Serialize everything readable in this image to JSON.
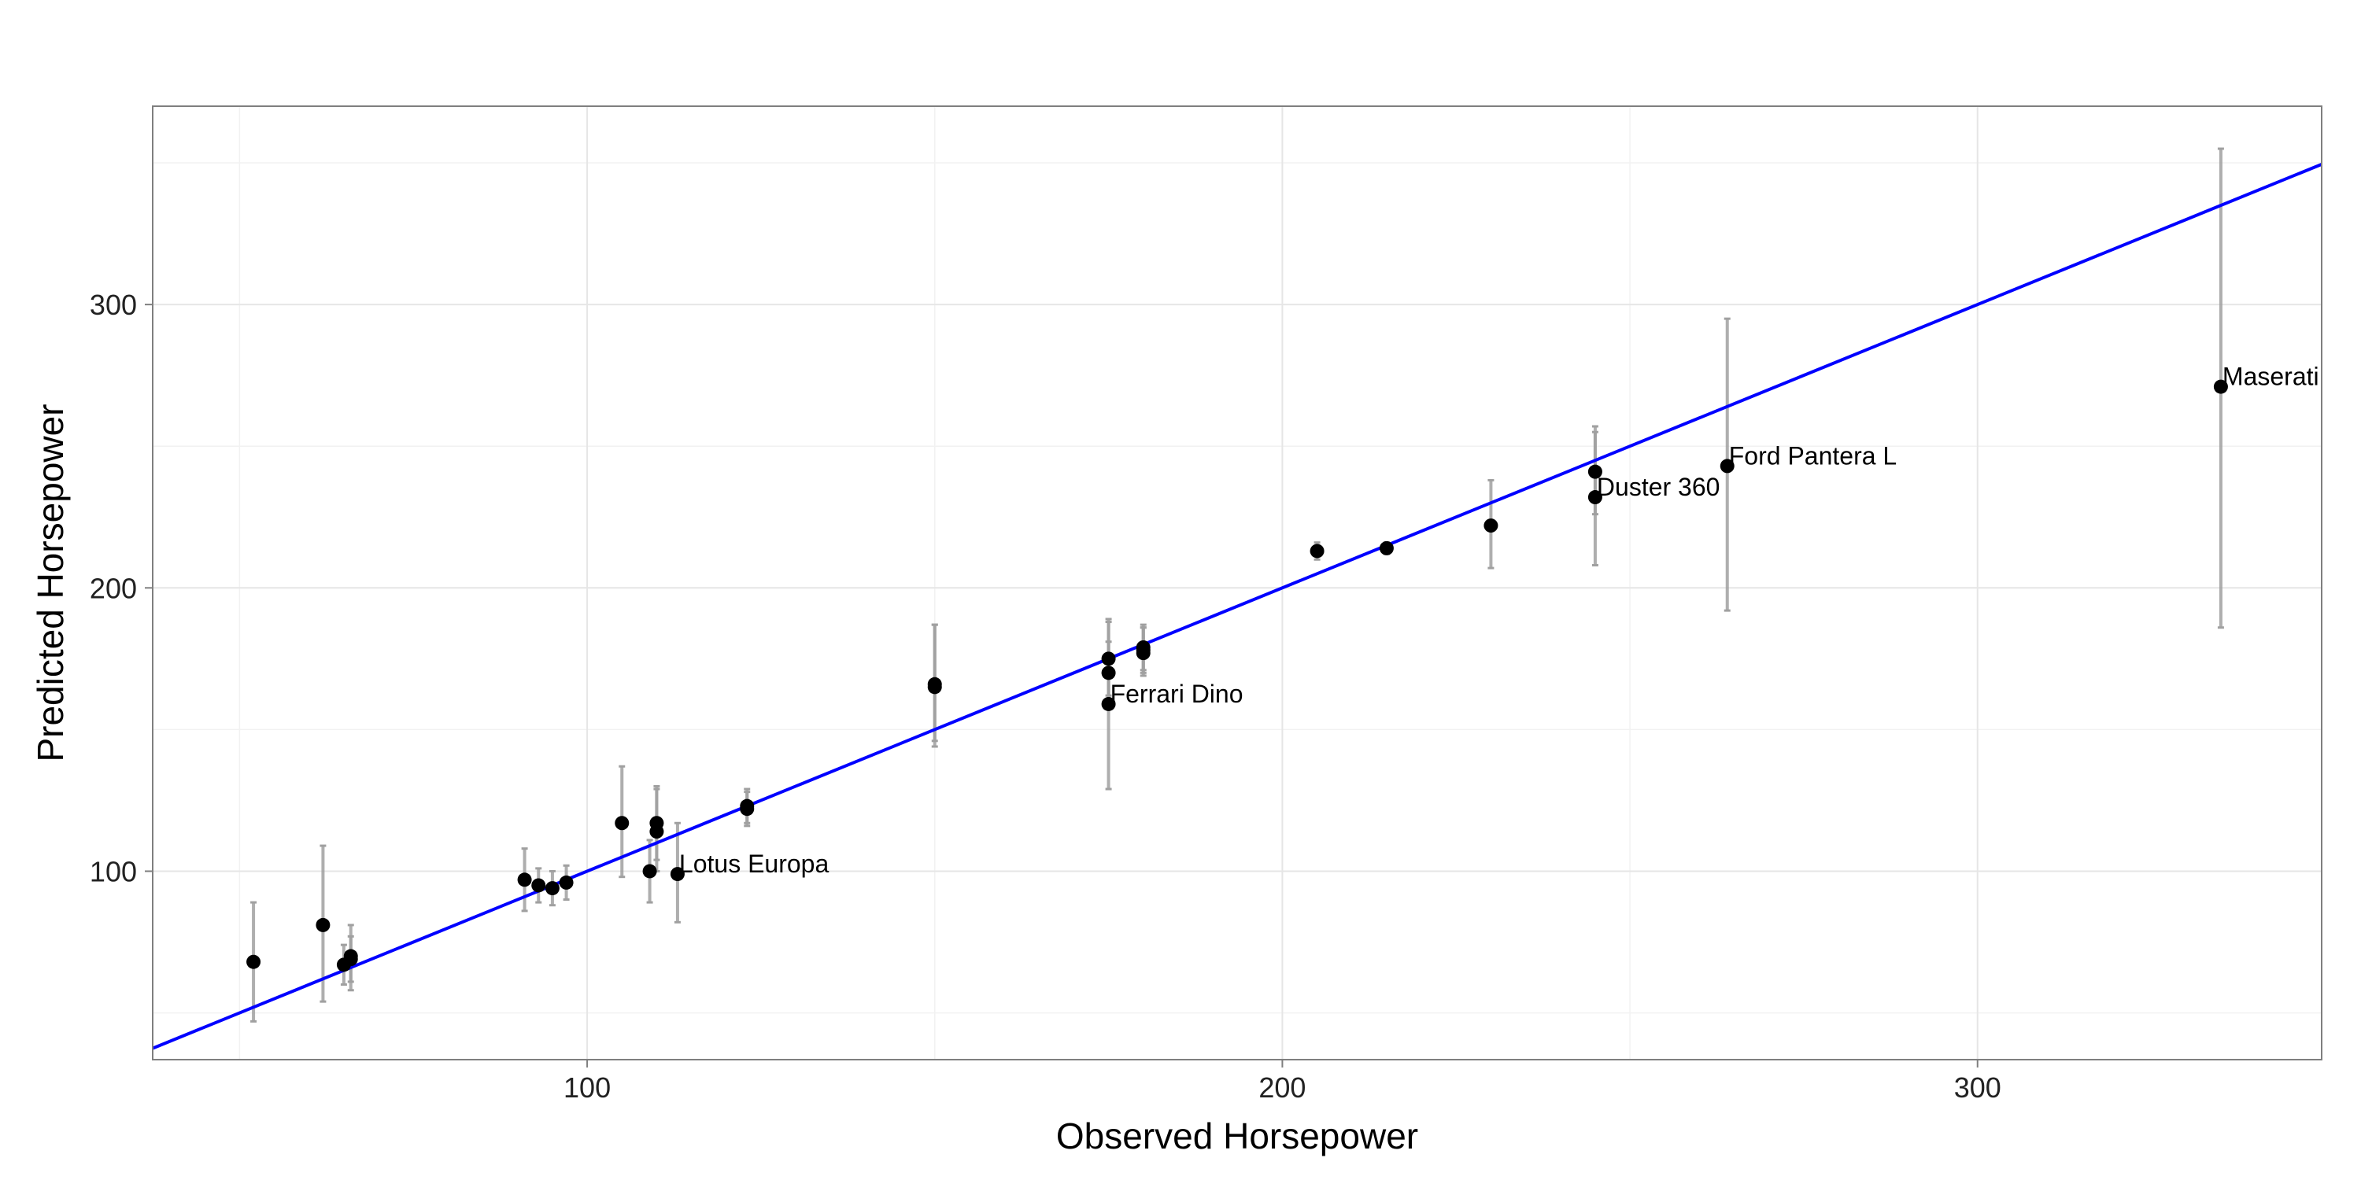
{
  "chart_data": {
    "type": "scatter",
    "title": "",
    "xlabel": "Observed Horsepower",
    "ylabel": "Predicted Horsepower",
    "xlim": [
      37.5,
      349.5
    ],
    "ylim": [
      33.5,
      370
    ],
    "x_ticks": [
      100,
      200,
      300
    ],
    "y_ticks": [
      100,
      200,
      300
    ],
    "grid": true,
    "legend": "none",
    "colors": {
      "point": "#000000",
      "fit_line": "#0000ff",
      "error_bar": "#a0a0a0",
      "grid": "#e6e6e6",
      "border": "#7f7f7f"
    },
    "fit_line": {
      "x": [
        37.5,
        349.5
      ],
      "y": [
        37.5,
        349.5
      ]
    },
    "points": [
      {
        "x": 52,
        "y": 68,
        "lo": 47,
        "hi": 89,
        "label": ""
      },
      {
        "x": 62,
        "y": 81,
        "lo": 54,
        "hi": 109,
        "label": ""
      },
      {
        "x": 65,
        "y": 67,
        "lo": 60,
        "hi": 74,
        "label": ""
      },
      {
        "x": 66,
        "y": 70,
        "lo": 61,
        "hi": 77,
        "label": ""
      },
      {
        "x": 66,
        "y": 69,
        "lo": 58,
        "hi": 81,
        "label": ""
      },
      {
        "x": 91,
        "y": 97,
        "lo": 86,
        "hi": 108,
        "label": ""
      },
      {
        "x": 93,
        "y": 95,
        "lo": 89,
        "hi": 101,
        "label": ""
      },
      {
        "x": 95,
        "y": 94,
        "lo": 88,
        "hi": 100,
        "label": ""
      },
      {
        "x": 97,
        "y": 96,
        "lo": 90,
        "hi": 102,
        "label": ""
      },
      {
        "x": 105,
        "y": 117,
        "lo": 98,
        "hi": 137,
        "label": ""
      },
      {
        "x": 109,
        "y": 100,
        "lo": 89,
        "hi": 111,
        "label": ""
      },
      {
        "x": 110,
        "y": 117,
        "lo": 104,
        "hi": 130,
        "label": ""
      },
      {
        "x": 110,
        "y": 114,
        "lo": 100,
        "hi": 129,
        "label": ""
      },
      {
        "x": 113,
        "y": 99,
        "lo": 82,
        "hi": 117,
        "label": "Lotus Europa"
      },
      {
        "x": 123,
        "y": 122,
        "lo": 116,
        "hi": 129,
        "label": ""
      },
      {
        "x": 123,
        "y": 123,
        "lo": 117,
        "hi": 128,
        "label": ""
      },
      {
        "x": 150,
        "y": 165,
        "lo": 144,
        "hi": 187,
        "label": ""
      },
      {
        "x": 150,
        "y": 166,
        "lo": 146,
        "hi": 187,
        "label": ""
      },
      {
        "x": 175,
        "y": 170,
        "lo": 160,
        "hi": 181,
        "label": ""
      },
      {
        "x": 175,
        "y": 175,
        "lo": 162,
        "hi": 188,
        "label": ""
      },
      {
        "x": 175,
        "y": 159,
        "lo": 129,
        "hi": 189,
        "label": "Ferrari Dino"
      },
      {
        "x": 180,
        "y": 177,
        "lo": 169,
        "hi": 186,
        "label": ""
      },
      {
        "x": 180,
        "y": 179,
        "lo": 171,
        "hi": 187,
        "label": ""
      },
      {
        "x": 180,
        "y": 178,
        "lo": 170,
        "hi": 186,
        "label": ""
      },
      {
        "x": 205,
        "y": 213,
        "lo": 210,
        "hi": 216,
        "label": ""
      },
      {
        "x": 215,
        "y": 214,
        "lo": 212,
        "hi": 216,
        "label": ""
      },
      {
        "x": 230,
        "y": 222,
        "lo": 207,
        "hi": 238,
        "label": ""
      },
      {
        "x": 245,
        "y": 241,
        "lo": 226,
        "hi": 257,
        "label": ""
      },
      {
        "x": 245,
        "y": 232,
        "lo": 208,
        "hi": 255,
        "label": "Duster 360"
      },
      {
        "x": 264,
        "y": 243,
        "lo": 192,
        "hi": 295,
        "label": "Ford Pantera L"
      },
      {
        "x": 335,
        "y": 271,
        "lo": 186,
        "hi": 355,
        "label": "Maserati Bora"
      }
    ]
  }
}
